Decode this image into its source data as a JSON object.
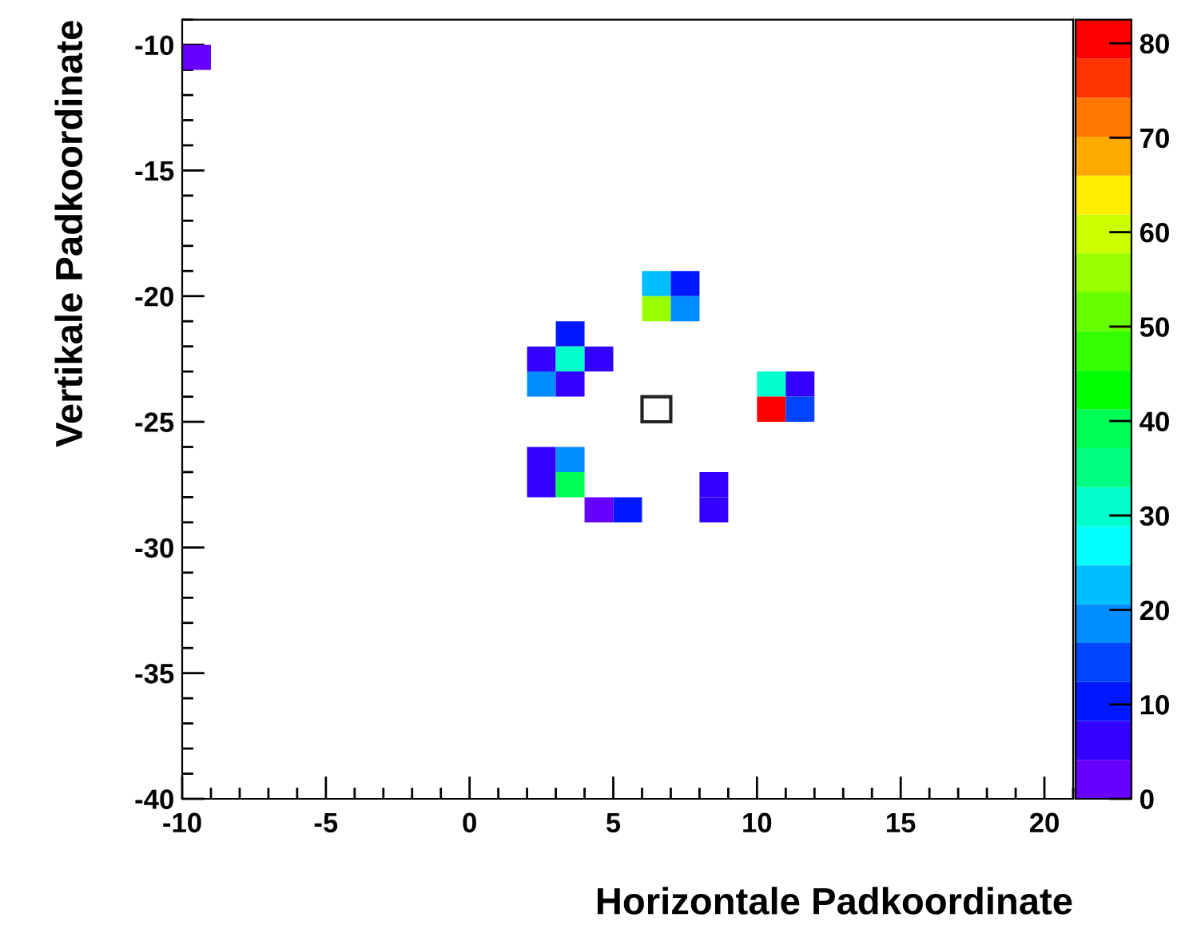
{
  "chart_data": {
    "type": "scatter",
    "marker": "square",
    "xlabel": "Horizontale Padkoordinate",
    "ylabel": "Vertikale Padkoordinate",
    "xlim": [
      -10,
      21
    ],
    "ylim": [
      -40,
      -9
    ],
    "xticks": [
      -10,
      -5,
      0,
      5,
      10,
      15,
      20
    ],
    "yticks": [
      -40,
      -35,
      -30,
      -25,
      -20,
      -15,
      -10
    ],
    "clim": [
      0,
      82.5
    ],
    "cticks": [
      0,
      10,
      20,
      30,
      40,
      50,
      60,
      70,
      80
    ],
    "x": [
      -9.5,
      6.5,
      7.5,
      6.5,
      7.5,
      3.5,
      2.5,
      3.5,
      4.5,
      2.5,
      3.5,
      10.5,
      11.5,
      10.5,
      11.5,
      2.5,
      3.5,
      2.5,
      3.5,
      8.5,
      4.5,
      5.5,
      8.5
    ],
    "values": [
      -10.5,
      -19.5,
      -19.5,
      -20.5,
      -20.5,
      -21.5,
      -22.5,
      -22.5,
      -22.5,
      -23.5,
      -23.5,
      -23.5,
      -23.5,
      -24.5,
      -24.5,
      -26.5,
      -26.5,
      -27.5,
      -27.5,
      -27.5,
      -28.5,
      -28.5,
      -28.5
    ],
    "cvalues": [
      2,
      23,
      10,
      56,
      19,
      10,
      6,
      31,
      6,
      19,
      6,
      31,
      6,
      81,
      14,
      6,
      19,
      6,
      39,
      6,
      2,
      10,
      6
    ]
  }
}
